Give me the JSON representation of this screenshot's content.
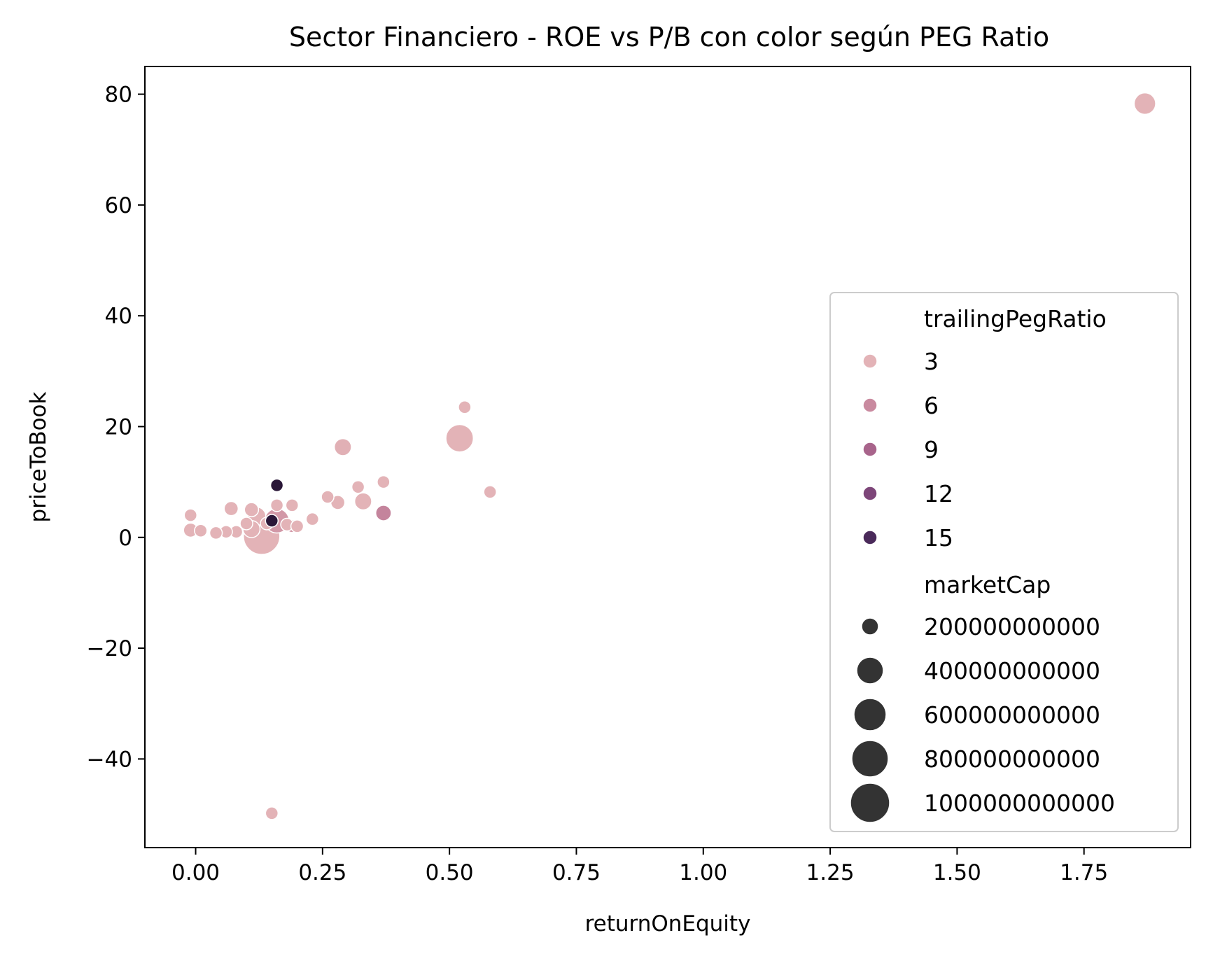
{
  "chart_data": {
    "type": "scatter",
    "title": "Sector Financiero - ROE vs P/B con color según PEG Ratio",
    "xlabel": "returnOnEquity",
    "ylabel": "priceToBook",
    "xlim": [
      -0.1,
      1.96
    ],
    "ylim": [
      -56,
      85
    ],
    "x_ticks": [
      0.0,
      0.25,
      0.5,
      0.75,
      1.0,
      1.25,
      1.5,
      1.75
    ],
    "x_tick_labels": [
      "0.00",
      "0.25",
      "0.50",
      "0.75",
      "1.00",
      "1.25",
      "1.50",
      "1.75"
    ],
    "y_ticks": [
      -40,
      -20,
      0,
      20,
      40,
      60,
      80
    ],
    "y_tick_labels": [
      "−40",
      "−20",
      "0",
      "20",
      "40",
      "60",
      "80"
    ],
    "grid": false,
    "legend_position": "center-right",
    "hue_legend": {
      "title": "trailingPegRatio",
      "items": [
        {
          "label": "3",
          "value": 3,
          "color": "#e3b3b7"
        },
        {
          "label": "6",
          "value": 6,
          "color": "#c98a9f"
        },
        {
          "label": "9",
          "value": 9,
          "color": "#a8648b"
        },
        {
          "label": "12",
          "value": 12,
          "color": "#7d4679"
        },
        {
          "label": "15",
          "value": 15,
          "color": "#4a2a5a"
        }
      ]
    },
    "size_legend": {
      "title": "marketCap",
      "color": "#333333",
      "items": [
        {
          "label": "200000000000",
          "value": 200000000000
        },
        {
          "label": "400000000000",
          "value": 400000000000
        },
        {
          "label": "600000000000",
          "value": 600000000000
        },
        {
          "label": "800000000000",
          "value": 800000000000
        },
        {
          "label": "1000000000000",
          "value": 1000000000000
        }
      ]
    },
    "points": [
      {
        "x": 1.87,
        "y": 78.3,
        "peg": 2.0,
        "mcap": 500000000000
      },
      {
        "x": 0.53,
        "y": 23.5,
        "peg": 2.5,
        "mcap": 200000000000
      },
      {
        "x": 0.52,
        "y": 17.9,
        "peg": 1.8,
        "mcap": 700000000000
      },
      {
        "x": 0.58,
        "y": 8.2,
        "peg": 2.5,
        "mcap": 150000000000
      },
      {
        "x": 0.29,
        "y": 16.3,
        "peg": 3.2,
        "mcap": 350000000000
      },
      {
        "x": 0.37,
        "y": 10.0,
        "peg": 2.5,
        "mcap": 200000000000
      },
      {
        "x": 0.37,
        "y": 4.4,
        "peg": 6.5,
        "mcap": 300000000000
      },
      {
        "x": 0.33,
        "y": 6.5,
        "peg": 3.0,
        "mcap": 350000000000
      },
      {
        "x": 0.32,
        "y": 9.1,
        "peg": 3.0,
        "mcap": 120000000000
      },
      {
        "x": 0.28,
        "y": 6.3,
        "peg": 3.0,
        "mcap": 250000000000
      },
      {
        "x": 0.26,
        "y": 7.3,
        "peg": 2.5,
        "mcap": 120000000000
      },
      {
        "x": 0.23,
        "y": 3.3,
        "peg": 2.5,
        "mcap": 200000000000
      },
      {
        "x": 0.19,
        "y": 5.8,
        "peg": 2.5,
        "mcap": 120000000000
      },
      {
        "x": 0.16,
        "y": 9.4,
        "peg": 15.5,
        "mcap": 200000000000
      },
      {
        "x": 0.16,
        "y": 5.8,
        "peg": 3.0,
        "mcap": 120000000000
      },
      {
        "x": 0.16,
        "y": 3.0,
        "peg": 5.0,
        "mcap": 600000000000
      },
      {
        "x": 0.15,
        "y": 3.0,
        "peg": 17.5,
        "mcap": 120000000000
      },
      {
        "x": 0.13,
        "y": 0.2,
        "peg": 2.0,
        "mcap": 1000000000000
      },
      {
        "x": 0.12,
        "y": 3.8,
        "peg": 3.0,
        "mcap": 400000000000
      },
      {
        "x": 0.11,
        "y": 5.0,
        "peg": 3.0,
        "mcap": 250000000000
      },
      {
        "x": 0.11,
        "y": 1.5,
        "peg": 2.0,
        "mcap": 350000000000
      },
      {
        "x": 0.07,
        "y": 5.2,
        "peg": 2.5,
        "mcap": 250000000000
      },
      {
        "x": 0.08,
        "y": 1.0,
        "peg": 2.5,
        "mcap": 200000000000
      },
      {
        "x": 0.06,
        "y": 1.0,
        "peg": 2.0,
        "mcap": 150000000000
      },
      {
        "x": 0.04,
        "y": 0.8,
        "peg": 2.0,
        "mcap": 100000000000
      },
      {
        "x": 0.01,
        "y": 1.2,
        "peg": 2.0,
        "mcap": 150000000000
      },
      {
        "x": -0.01,
        "y": 1.3,
        "peg": 2.0,
        "mcap": 250000000000
      },
      {
        "x": -0.01,
        "y": 4.0,
        "peg": 2.5,
        "mcap": 150000000000
      },
      {
        "x": 0.19,
        "y": 2.0,
        "peg": 5.0,
        "mcap": 200000000000
      },
      {
        "x": 0.18,
        "y": 2.3,
        "peg": 3.0,
        "mcap": 150000000000
      },
      {
        "x": 0.2,
        "y": 2.0,
        "peg": 2.5,
        "mcap": 150000000000
      },
      {
        "x": 0.14,
        "y": 2.5,
        "peg": 3.0,
        "mcap": 150000000000
      },
      {
        "x": 0.1,
        "y": 2.5,
        "peg": 2.5,
        "mcap": 120000000000
      },
      {
        "x": 0.15,
        "y": -49.8,
        "peg": 2.5,
        "mcap": 120000000000
      }
    ]
  }
}
